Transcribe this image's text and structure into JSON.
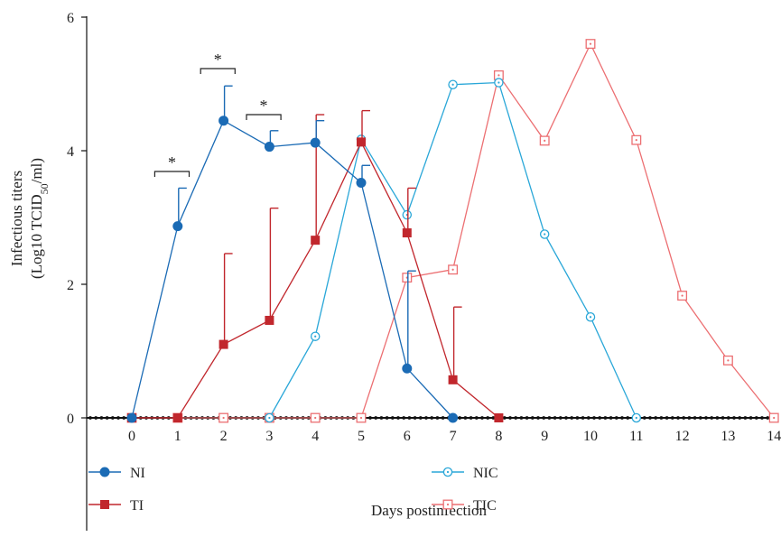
{
  "chart_data": {
    "type": "line",
    "xlabel": "Days postinfection",
    "ylabel_line1": "Infectious titers",
    "ylabel_prefix": "(Log10 TCID",
    "ylabel_sub": "50",
    "ylabel_suffix": "/ml)",
    "x": [
      0,
      1,
      2,
      3,
      4,
      5,
      6,
      7,
      8,
      9,
      10,
      11,
      12,
      13,
      14
    ],
    "ylim": [
      0,
      6
    ],
    "yticks": [
      0,
      2,
      4,
      6
    ],
    "legend_position": "bottom",
    "series": [
      {
        "name": "NI",
        "color": "#1b6bb5",
        "marker": "filled-circle",
        "points": [
          [
            0,
            0
          ],
          [
            1,
            2.87
          ],
          [
            2,
            4.45
          ],
          [
            3,
            4.06
          ],
          [
            4,
            4.12
          ],
          [
            5,
            3.52
          ],
          [
            6,
            0.74
          ],
          [
            7,
            0
          ]
        ],
        "errors": [
          [
            1,
            3.44
          ],
          [
            2,
            4.97
          ],
          [
            3,
            4.3
          ],
          [
            4,
            4.45
          ],
          [
            5,
            3.78
          ],
          [
            6,
            2.2
          ]
        ]
      },
      {
        "name": "TI",
        "color": "#c1272d",
        "marker": "filled-square",
        "points": [
          [
            0,
            0
          ],
          [
            1,
            0
          ],
          [
            2,
            1.1
          ],
          [
            3,
            1.46
          ],
          [
            4,
            2.66
          ],
          [
            5,
            4.13
          ],
          [
            6,
            2.77
          ],
          [
            7,
            0.57
          ],
          [
            8,
            0
          ]
        ],
        "errors": [
          [
            2,
            2.46
          ],
          [
            3,
            3.14
          ],
          [
            4,
            4.54
          ],
          [
            5,
            4.6
          ],
          [
            6,
            3.44
          ],
          [
            7,
            1.66
          ]
        ]
      },
      {
        "name": "NIC",
        "color": "#2aa7d8",
        "marker": "open-dot-circle",
        "points": [
          [
            3,
            0
          ],
          [
            4,
            1.22
          ],
          [
            5,
            4.17
          ],
          [
            6,
            3.04
          ],
          [
            7,
            4.99
          ],
          [
            8,
            5.02
          ],
          [
            9,
            2.75
          ],
          [
            10,
            1.51
          ],
          [
            11,
            0
          ]
        ],
        "errors": []
      },
      {
        "name": "TIC",
        "color": "#ec6f72",
        "marker": "open-dot-square",
        "points": [
          [
            0,
            0
          ],
          [
            1,
            0
          ],
          [
            2,
            0
          ],
          [
            3,
            0
          ],
          [
            4,
            0
          ],
          [
            5,
            0
          ],
          [
            6,
            2.1
          ],
          [
            7,
            2.22
          ],
          [
            8,
            5.13
          ],
          [
            9,
            4.15
          ],
          [
            10,
            5.6
          ],
          [
            11,
            4.16
          ],
          [
            12,
            1.83
          ],
          [
            13,
            0.86
          ],
          [
            14,
            0
          ]
        ],
        "errors": []
      }
    ],
    "significance": [
      {
        "x": 1,
        "label": "*"
      },
      {
        "x": 2,
        "label": "*"
      },
      {
        "x": 3,
        "label": "*"
      }
    ]
  }
}
